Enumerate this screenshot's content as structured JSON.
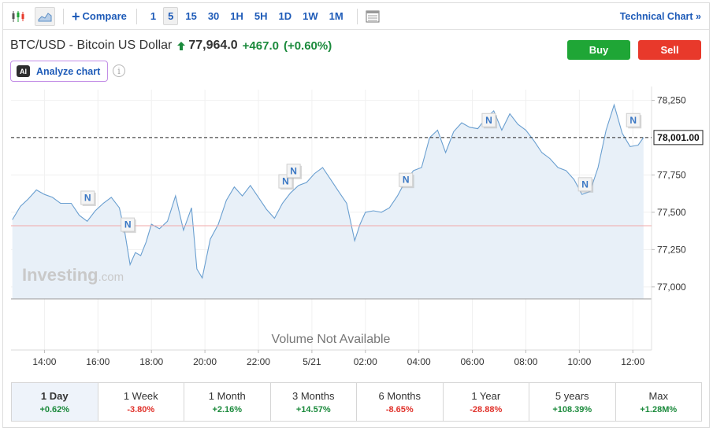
{
  "toolbar": {
    "compare_label": "Compare",
    "timeframes": [
      "1",
      "5",
      "15",
      "30",
      "1H",
      "5H",
      "1D",
      "1W",
      "1M"
    ],
    "active_timeframe": "5",
    "technical_chart_label": "Technical Chart »"
  },
  "instrument": {
    "name": "BTC/USD - Bitcoin US Dollar",
    "price": "77,964.0",
    "change": "+467.0",
    "change_pct": "(+0.60%)",
    "direction": "up"
  },
  "buttons": {
    "buy": "Buy",
    "sell": "Sell"
  },
  "analyze": {
    "badge": "AI",
    "label": "Analyze chart",
    "info": "i"
  },
  "colors": {
    "accent": "#1e5bb8",
    "positive": "#1b8a3c",
    "negative": "#e0312a",
    "buy": "#1fa636",
    "sell": "#e8392b",
    "line": "#6a9fd0",
    "area": "#e8f0f8"
  },
  "watermark": {
    "main": "Investing",
    "suffix": ".com"
  },
  "volume_text": "Volume Not Available",
  "current_price_label": "78,001.00",
  "chart_data": {
    "type": "area",
    "y_ticks": [
      "78,250",
      "77,750",
      "77,500",
      "77,250",
      "77,000"
    ],
    "y_tick_values": [
      78250,
      77750,
      77500,
      77250,
      77000
    ],
    "ylim": [
      76920,
      78290
    ],
    "x_ticks": [
      "14:00",
      "16:00",
      "18:00",
      "20:00",
      "22:00",
      "5/21",
      "02:00",
      "04:00",
      "06:00",
      "08:00",
      "10:00",
      "12:00"
    ],
    "x_tick_hours": [
      14,
      16,
      18,
      20,
      22,
      24,
      26,
      28,
      30,
      32,
      34,
      36
    ],
    "xlim": [
      12.75,
      36.7
    ],
    "current_price": 78001,
    "previous_close": 77410,
    "grid": true,
    "series": [
      {
        "x": [
          12.8,
          13.1,
          13.4,
          13.7,
          14.0,
          14.3,
          14.6,
          15.0,
          15.3,
          15.6,
          15.9,
          16.2,
          16.5,
          16.8,
          17.0,
          17.2,
          17.4,
          17.6,
          17.8,
          18.0,
          18.3,
          18.6,
          18.9,
          19.2,
          19.5,
          19.7,
          19.9,
          20.2,
          20.5,
          20.8,
          21.1,
          21.4,
          21.7,
          22.0,
          22.3,
          22.6,
          22.9,
          23.2,
          23.5,
          23.8,
          24.1,
          24.4,
          24.7,
          25.0,
          25.3,
          25.6,
          25.8,
          26.0,
          26.3,
          26.6,
          26.9,
          27.2,
          27.5,
          27.8,
          28.1,
          28.4,
          28.7,
          29.0,
          29.3,
          29.6,
          29.9,
          30.2,
          30.5,
          30.8,
          31.1,
          31.4,
          31.7,
          32.0,
          32.3,
          32.6,
          32.9,
          33.2,
          33.5,
          33.8,
          34.1,
          34.4,
          34.7,
          35.0,
          35.3,
          35.6,
          35.9,
          36.2,
          36.4
        ],
        "y": [
          77450,
          77540,
          77590,
          77650,
          77620,
          77600,
          77560,
          77560,
          77480,
          77440,
          77510,
          77560,
          77600,
          77530,
          77370,
          77150,
          77230,
          77210,
          77300,
          77420,
          77390,
          77440,
          77610,
          77380,
          77530,
          77120,
          77060,
          77320,
          77420,
          77580,
          77670,
          77610,
          77680,
          77600,
          77520,
          77460,
          77560,
          77630,
          77680,
          77700,
          77760,
          77800,
          77720,
          77640,
          77560,
          77310,
          77420,
          77500,
          77510,
          77500,
          77530,
          77610,
          77710,
          77780,
          77800,
          78000,
          78050,
          77900,
          78040,
          78100,
          78070,
          78060,
          78130,
          78180,
          78050,
          78160,
          78090,
          78050,
          77980,
          77900,
          77860,
          77800,
          77780,
          77720,
          77620,
          77640,
          77800,
          78050,
          78220,
          78030,
          77940,
          77950,
          78001
        ]
      }
    ],
    "news_markers": [
      {
        "label": "N",
        "x": 15.6,
        "y": 77600
      },
      {
        "label": "N",
        "x": 17.1,
        "y": 77420
      },
      {
        "label": "N",
        "x": 23.0,
        "y": 77710
      },
      {
        "label": "N",
        "x": 23.3,
        "y": 77780
      },
      {
        "label": "N",
        "x": 27.5,
        "y": 77720
      },
      {
        "label": "N",
        "x": 30.6,
        "y": 78120
      },
      {
        "label": "N",
        "x": 34.2,
        "y": 77690
      },
      {
        "label": "N",
        "x": 36.0,
        "y": 78120
      }
    ]
  },
  "ranges": [
    {
      "label": "1 Day",
      "change": "+0.62%",
      "dir": "pos"
    },
    {
      "label": "1 Week",
      "change": "-3.80%",
      "dir": "neg"
    },
    {
      "label": "1 Month",
      "change": "+2.16%",
      "dir": "pos"
    },
    {
      "label": "3 Months",
      "change": "+14.57%",
      "dir": "pos"
    },
    {
      "label": "6 Months",
      "change": "-8.65%",
      "dir": "neg"
    },
    {
      "label": "1 Year",
      "change": "-28.88%",
      "dir": "neg"
    },
    {
      "label": "5 years",
      "change": "+108.39%",
      "dir": "pos"
    },
    {
      "label": "Max",
      "change": "+1.28M%",
      "dir": "pos"
    }
  ]
}
